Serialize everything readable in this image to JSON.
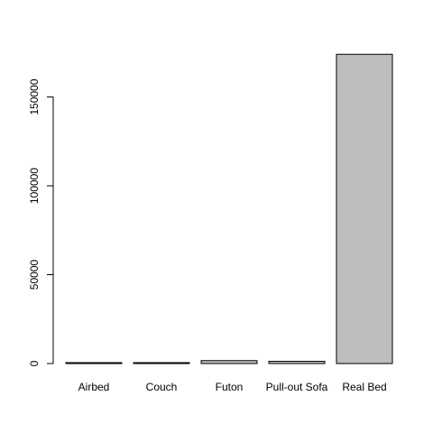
{
  "chart_data": {
    "type": "bar",
    "categories": [
      "Airbed",
      "Couch",
      "Futon",
      "Pull-out Sofa",
      "Real Bed"
    ],
    "values": [
      235,
      460,
      1650,
      1250,
      174000
    ],
    "yticks": [
      0,
      50000,
      100000,
      150000
    ],
    "ylim": [
      0,
      180000
    ],
    "bar_color": "#bebebe",
    "grid": false,
    "legend": "none",
    "title": "",
    "xlabel": "",
    "ylabel": ""
  }
}
